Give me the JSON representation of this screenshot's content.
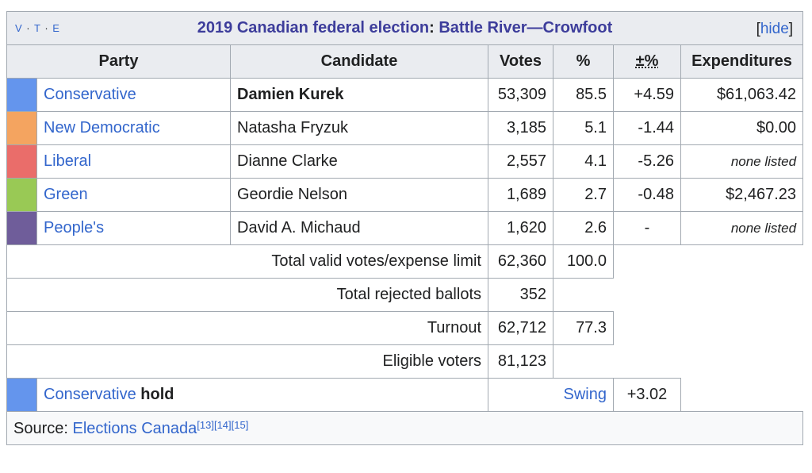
{
  "header": {
    "vte": [
      "V",
      "T",
      "E"
    ],
    "title": "2019 Canadian federal election",
    "title_sep": ": ",
    "riding": "Battle River—Crowfoot",
    "hide_open": "[",
    "hide_label": "hide",
    "hide_close": "]"
  },
  "columns": {
    "party": "Party",
    "candidate": "Candidate",
    "votes": "Votes",
    "pct": "%",
    "change": "±%",
    "expenditures": "Expenditures"
  },
  "rows": [
    {
      "party": "Conservative",
      "color": "#6495ED",
      "candidate": "Damien Kurek",
      "votes": "53,309",
      "pct": "85.5",
      "change": "+4.59",
      "expenditures": "$61,063.42"
    },
    {
      "party": "New Democratic",
      "color": "#F4A460",
      "candidate": "Natasha Fryzuk",
      "votes": "3,185",
      "pct": "5.1",
      "change": "-1.44",
      "expenditures": "$0.00"
    },
    {
      "party": "Liberal",
      "color": "#EA6D6A",
      "candidate": "Dianne Clarke",
      "votes": "2,557",
      "pct": "4.1",
      "change": "-5.26",
      "expenditures": "none listed"
    },
    {
      "party": "Green",
      "color": "#99C955",
      "candidate": "Geordie Nelson",
      "votes": "1,689",
      "pct": "2.7",
      "change": "-0.48",
      "expenditures": "$2,467.23"
    },
    {
      "party": "People's",
      "color": "#6F5D9A",
      "candidate": "David A. Michaud",
      "votes": "1,620",
      "pct": "2.6",
      "change": "-",
      "expenditures": "none listed"
    }
  ],
  "totals": {
    "valid_label": "Total valid votes/expense limit",
    "valid_votes": "62,360",
    "valid_pct": "100.0",
    "rejected_label": "Total rejected ballots",
    "rejected_votes": "352",
    "turnout_label": "Turnout",
    "turnout_votes": "62,712",
    "turnout_pct": "77.3",
    "eligible_label": "Eligible voters",
    "eligible_votes": "81,123"
  },
  "result": {
    "party": "Conservative",
    "outcome": "hold",
    "color": "#6495ED",
    "swing_label": "Swing",
    "swing_value": "+3.02"
  },
  "source": {
    "label": "Source: ",
    "link": "Elections Canada",
    "refs": [
      "[13]",
      "[14]",
      "[15]"
    ]
  }
}
